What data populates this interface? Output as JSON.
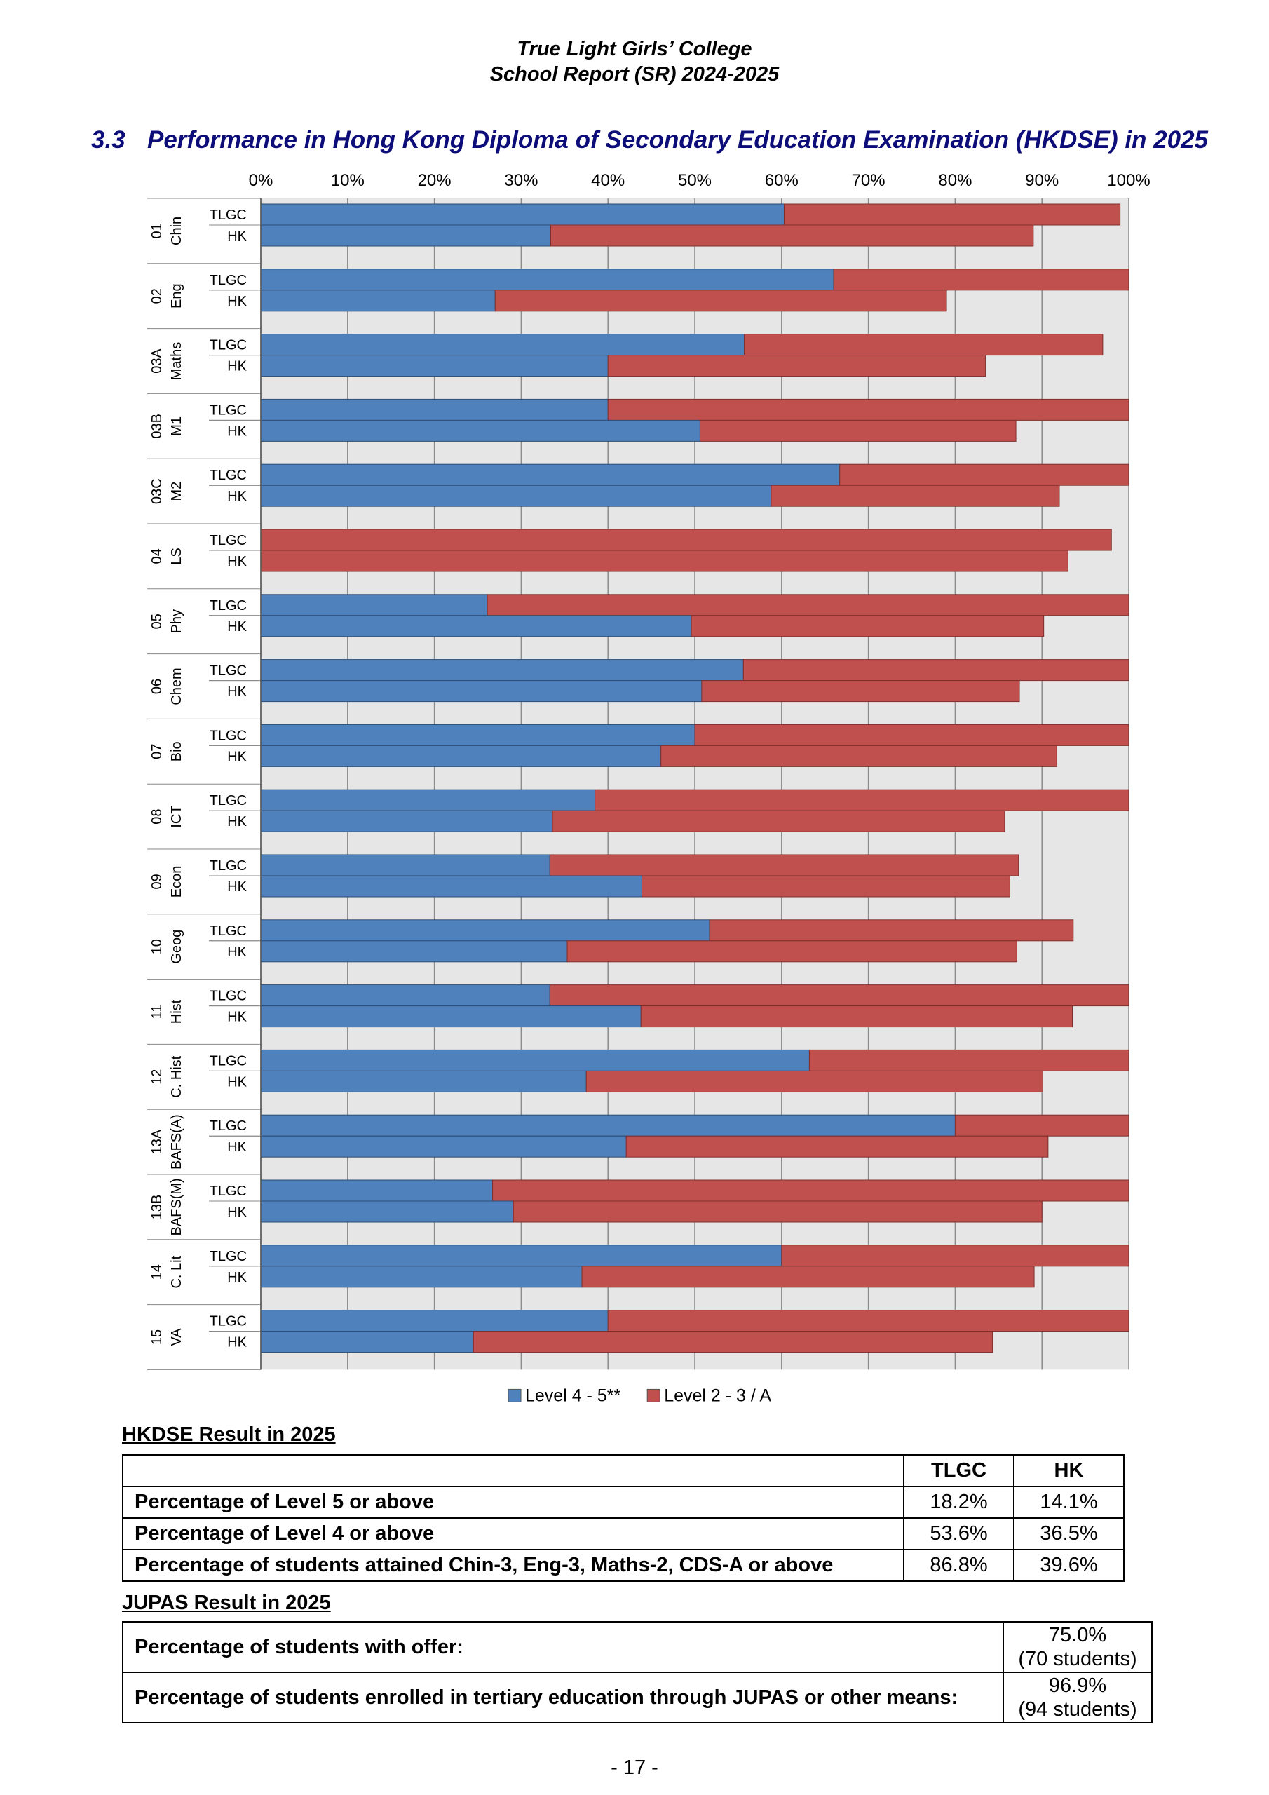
{
  "header": {
    "line1": "True Light Girls’ College",
    "line2": "School Report (SR) 2024-2025"
  },
  "section": {
    "number": "3.3",
    "title": "Performance in Hong Kong Diploma of Secondary Education Examination (HKDSE) in 2025"
  },
  "chart_data": {
    "type": "bar",
    "orientation": "horizontal",
    "stacked": true,
    "xlim": [
      0,
      100
    ],
    "x_ticks": [
      "0%",
      "10%",
      "20%",
      "30%",
      "40%",
      "50%",
      "60%",
      "70%",
      "80%",
      "90%",
      "100%"
    ],
    "grid": true,
    "legend_position": "bottom",
    "series": [
      {
        "name": "Level 4 - 5**",
        "color": "#4f81bd"
      },
      {
        "name": "Level 2 - 3 / A",
        "color": "#c0504d"
      }
    ],
    "groups": [
      {
        "code": "01",
        "subject": "Chin",
        "rows": [
          {
            "label": "TLGC",
            "level45": 60.3,
            "level23": 38.7
          },
          {
            "label": "HK",
            "level45": 33.4,
            "level23": 55.6
          }
        ]
      },
      {
        "code": "02",
        "subject": "Eng",
        "rows": [
          {
            "label": "TLGC",
            "level45": 66.0,
            "level23": 34.0
          },
          {
            "label": "HK",
            "level45": 27.0,
            "level23": 52.0
          }
        ]
      },
      {
        "code": "03A",
        "subject": "Maths",
        "rows": [
          {
            "label": "TLGC",
            "level45": 55.7,
            "level23": 41.3
          },
          {
            "label": "HK",
            "level45": 40.0,
            "level23": 43.5
          }
        ]
      },
      {
        "code": "03B",
        "subject": "M1",
        "rows": [
          {
            "label": "TLGC",
            "level45": 40.0,
            "level23": 60.0
          },
          {
            "label": "HK",
            "level45": 50.6,
            "level23": 36.4
          }
        ]
      },
      {
        "code": "03C",
        "subject": "M2",
        "rows": [
          {
            "label": "TLGC",
            "level45": 66.7,
            "level23": 33.3
          },
          {
            "label": "HK",
            "level45": 58.8,
            "level23": 33.2
          }
        ]
      },
      {
        "code": "04",
        "subject": "LS",
        "rows": [
          {
            "label": "TLGC",
            "level45": 0,
            "level23": 98.0
          },
          {
            "label": "HK",
            "level45": 0,
            "level23": 93.0
          }
        ]
      },
      {
        "code": "05",
        "subject": "Phy",
        "rows": [
          {
            "label": "TLGC",
            "level45": 26.1,
            "level23": 73.9
          },
          {
            "label": "HK",
            "level45": 49.6,
            "level23": 40.6
          }
        ]
      },
      {
        "code": "06",
        "subject": "Chem",
        "rows": [
          {
            "label": "TLGC",
            "level45": 55.6,
            "level23": 44.4
          },
          {
            "label": "HK",
            "level45": 50.8,
            "level23": 36.6
          }
        ]
      },
      {
        "code": "07",
        "subject": "Bio",
        "rows": [
          {
            "label": "TLGC",
            "level45": 50.0,
            "level23": 50.0
          },
          {
            "label": "HK",
            "level45": 46.1,
            "level23": 45.6
          }
        ]
      },
      {
        "code": "08",
        "subject": "ICT",
        "rows": [
          {
            "label": "TLGC",
            "level45": 38.5,
            "level23": 61.5
          },
          {
            "label": "HK",
            "level45": 33.6,
            "level23": 52.1
          }
        ]
      },
      {
        "code": "09",
        "subject": "Econ",
        "rows": [
          {
            "label": "TLGC",
            "level45": 33.3,
            "level23": 54.0
          },
          {
            "label": "HK",
            "level45": 43.9,
            "level23": 42.4
          }
        ]
      },
      {
        "code": "10",
        "subject": "Geog",
        "rows": [
          {
            "label": "TLGC",
            "level45": 51.7,
            "level23": 41.9
          },
          {
            "label": "HK",
            "level45": 35.3,
            "level23": 51.8
          }
        ]
      },
      {
        "code": "11",
        "subject": "Hist",
        "rows": [
          {
            "label": "TLGC",
            "level45": 33.3,
            "level23": 66.7
          },
          {
            "label": "HK",
            "level45": 43.8,
            "level23": 49.7
          }
        ]
      },
      {
        "code": "12",
        "subject": "C. Hist",
        "rows": [
          {
            "label": "TLGC",
            "level45": 63.2,
            "level23": 36.8
          },
          {
            "label": "HK",
            "level45": 37.5,
            "level23": 52.6
          }
        ]
      },
      {
        "code": "13A",
        "subject": "BAFS(A)",
        "rows": [
          {
            "label": "TLGC",
            "level45": 80.0,
            "level23": 20.0
          },
          {
            "label": "HK",
            "level45": 42.1,
            "level23": 48.6
          }
        ]
      },
      {
        "code": "13B",
        "subject": "BAFS(M)",
        "rows": [
          {
            "label": "TLGC",
            "level45": 26.7,
            "level23": 73.3
          },
          {
            "label": "HK",
            "level45": 29.1,
            "level23": 60.9
          }
        ]
      },
      {
        "code": "14",
        "subject": "C. Lit",
        "rows": [
          {
            "label": "TLGC",
            "level45": 60.0,
            "level23": 40.0
          },
          {
            "label": "HK",
            "level45": 37.0,
            "level23": 52.1
          }
        ]
      },
      {
        "code": "15",
        "subject": "VA",
        "rows": [
          {
            "label": "TLGC",
            "level45": 40.0,
            "level23": 60.0
          },
          {
            "label": "HK",
            "level45": 24.5,
            "level23": 59.8
          }
        ]
      }
    ]
  },
  "hkdse": {
    "title": "HKDSE Result in 2025",
    "columns": [
      "TLGC",
      "HK"
    ],
    "rows": [
      {
        "label": "Percentage of Level 5 or above",
        "tlgc": "18.2%",
        "hk": "14.1%"
      },
      {
        "label": "Percentage of Level 4 or above",
        "tlgc": "53.6%",
        "hk": "36.5%"
      },
      {
        "label": "Percentage of students attained Chin-3, Eng-3, Maths-2, CDS-A or above",
        "tlgc": "86.8%",
        "hk": "39.6%"
      }
    ]
  },
  "jupas": {
    "title": "JUPAS Result in 2025",
    "rows": [
      {
        "label": "Percentage of students with offer:",
        "value": "75.0%",
        "detail": "(70 students)"
      },
      {
        "label": "Percentage of students enrolled in tertiary education through JUPAS or other means:",
        "value": "96.9%",
        "detail": "(94 students)"
      }
    ]
  },
  "footer": {
    "page": "- 17 -"
  }
}
